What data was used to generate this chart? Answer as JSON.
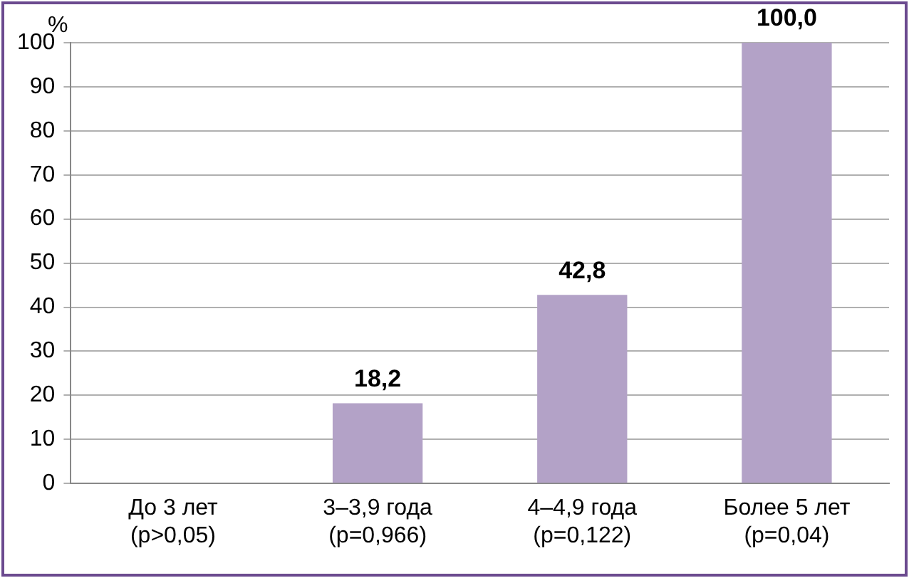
{
  "chart_data": {
    "type": "bar",
    "ylabel": "%",
    "categories": [
      "До 3 лет\n(p>0,05)",
      "3–3,9 года\n(p=0,966)",
      "4–4,9 года\n(p=0,122)",
      "Более 5 лет\n(p=0,04)"
    ],
    "values": [
      0,
      18.2,
      42.8,
      100
    ],
    "value_labels": [
      null,
      "18,2",
      "42,8",
      "100,0"
    ],
    "color": "#b3a2c7",
    "ylim": [
      0,
      100
    ],
    "yticks": [
      0,
      10,
      20,
      30,
      40,
      50,
      60,
      70,
      80,
      90,
      100
    ],
    "grid": "y",
    "legend": false
  }
}
